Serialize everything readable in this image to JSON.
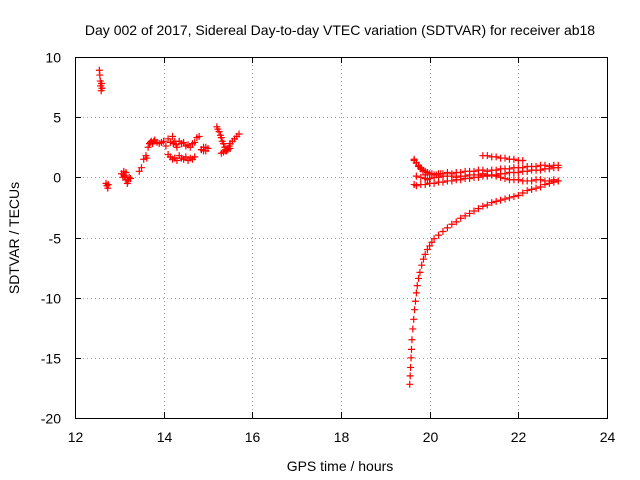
{
  "chart_data": {
    "type": "scatter",
    "title": "Day 002 of 2017, Sidereal Day-to-day VTEC variation (SDTVAR) for receiver ab18",
    "xlabel": "GPS time / hours",
    "ylabel": "SDTVAR / TECUs",
    "xlim": [
      12,
      24
    ],
    "ylim": [
      -20,
      10
    ],
    "xticks": [
      12,
      14,
      16,
      18,
      20,
      22,
      24
    ],
    "xtick_labels": [
      "12",
      "14",
      "16",
      "18",
      "20",
      "22",
      "24"
    ],
    "yticks": [
      10,
      5,
      0,
      -5,
      -10,
      -15,
      -20
    ],
    "ytick_labels": [
      "10",
      "5",
      "0",
      "-5",
      "-10",
      "-15",
      "-20"
    ],
    "grid": true,
    "marker": "plus",
    "color": "#ff0000",
    "series": [
      {
        "name": "SDTVAR",
        "x": [
          12.55,
          12.56,
          12.57,
          12.58,
          12.59,
          12.6,
          12.61,
          12.7,
          12.72,
          12.74,
          12.75,
          13.05,
          13.08,
          13.1,
          13.12,
          13.15,
          13.18,
          13.2,
          13.22,
          13.25,
          13.15,
          13.1,
          13.45,
          13.5,
          13.55,
          13.6,
          13.62,
          13.65,
          13.68,
          13.7,
          13.72,
          13.75,
          13.78,
          13.8,
          13.85,
          13.9,
          13.95,
          14.0,
          14.05,
          14.1,
          14.15,
          14.2,
          14.22,
          14.25,
          14.28,
          14.3,
          14.35,
          14.4,
          14.45,
          14.5,
          14.55,
          14.6,
          14.65,
          14.7,
          14.75,
          14.8,
          14.85,
          14.9,
          14.95,
          15.0,
          14.1,
          14.15,
          14.2,
          14.25,
          14.3,
          14.35,
          14.4,
          14.45,
          14.5,
          14.55,
          14.6,
          14.65,
          14.7,
          14.85,
          14.9,
          14.95,
          15.2,
          15.22,
          15.25,
          15.28,
          15.3,
          15.32,
          15.35,
          15.38,
          15.4,
          15.42,
          15.45,
          15.48,
          15.5,
          15.55,
          15.6,
          15.65,
          15.7,
          15.3,
          15.35,
          15.4,
          15.45,
          15.5,
          19.55,
          19.56,
          19.57,
          19.58,
          19.59,
          19.6,
          19.62,
          19.64,
          19.66,
          19.68,
          19.7,
          19.72,
          19.75,
          19.78,
          19.82,
          19.86,
          19.9,
          19.95,
          20.0,
          20.05,
          20.1,
          20.2,
          20.3,
          20.4,
          20.5,
          20.6,
          20.7,
          20.8,
          20.9,
          21.0,
          21.1,
          21.2,
          21.3,
          21.4,
          21.5,
          21.6,
          21.7,
          21.8,
          21.9,
          22.0,
          22.1,
          22.2,
          22.3,
          22.4,
          22.5,
          22.6,
          22.7,
          22.8,
          22.9,
          19.65,
          19.7,
          19.75,
          19.8,
          19.85,
          19.9,
          19.95,
          20.0,
          20.05,
          20.1,
          20.15,
          20.2,
          20.25,
          20.3,
          20.4,
          20.5,
          20.6,
          20.7,
          20.8,
          20.9,
          21.0,
          21.1,
          21.2,
          21.3,
          21.4,
          21.5,
          21.6,
          21.7,
          21.8,
          21.9,
          22.0,
          22.1,
          22.2,
          22.3,
          22.4,
          22.5,
          22.6,
          22.7,
          22.8,
          22.9,
          19.7,
          19.8,
          19.9,
          20.0,
          20.1,
          20.2,
          20.3,
          20.4,
          20.5,
          20.6,
          20.7,
          20.8,
          20.9,
          21.0,
          21.1,
          21.2,
          21.3,
          21.4,
          21.5,
          21.6,
          21.7,
          21.8,
          21.9,
          22.0,
          22.1,
          22.2,
          22.3,
          22.4,
          22.5,
          22.6,
          22.7,
          22.8,
          22.9,
          19.65,
          19.7,
          19.8,
          19.9,
          20.0,
          20.1,
          20.2,
          20.3,
          20.4,
          20.5,
          20.6,
          20.7,
          20.8,
          20.9,
          21.0,
          21.1,
          21.2,
          21.3,
          21.4,
          21.5,
          21.6,
          21.7,
          21.8,
          21.9,
          22.0,
          22.1,
          22.2,
          22.3,
          22.4,
          22.5,
          22.6,
          22.7,
          22.8,
          22.9,
          19.65,
          19.7,
          19.75,
          19.8,
          19.85,
          19.9,
          19.95,
          20.0,
          21.2,
          21.3,
          21.4,
          21.5,
          21.6,
          21.7,
          21.8,
          21.9,
          22.0,
          22.1
        ],
        "y": [
          8.9,
          8.5,
          8.0,
          7.6,
          7.2,
          7.8,
          7.4,
          -0.5,
          -0.7,
          -0.9,
          -0.6,
          0.3,
          0.0,
          0.5,
          0.1,
          -0.2,
          -0.5,
          -0.3,
          0.0,
          -0.1,
          0.4,
          0.2,
          0.5,
          0.8,
          1.5,
          1.8,
          1.6,
          2.5,
          2.8,
          2.9,
          3.0,
          2.8,
          3.0,
          3.1,
          2.9,
          2.8,
          2.9,
          3.0,
          2.6,
          3.2,
          2.9,
          3.4,
          2.8,
          3.0,
          2.7,
          2.5,
          3.0,
          2.8,
          2.9,
          2.6,
          2.7,
          2.5,
          2.8,
          2.9,
          3.3,
          3.4,
          2.3,
          2.2,
          2.5,
          2.4,
          1.9,
          1.7,
          1.5,
          1.6,
          1.4,
          1.8,
          1.6,
          1.5,
          1.7,
          1.4,
          1.6,
          1.5,
          1.7,
          2.3,
          2.5,
          2.2,
          4.2,
          4.0,
          3.8,
          3.5,
          3.3,
          3.0,
          2.8,
          2.5,
          2.3,
          2.2,
          2.4,
          2.6,
          2.8,
          3.0,
          3.2,
          3.4,
          3.6,
          2.0,
          2.1,
          2.2,
          2.3,
          2.4,
          -17.2,
          -16.5,
          -15.8,
          -15.0,
          -14.3,
          -13.5,
          -12.6,
          -11.8,
          -11.0,
          -10.3,
          -9.6,
          -9.0,
          -8.4,
          -7.9,
          -7.3,
          -6.8,
          -6.4,
          -6.0,
          -5.7,
          -5.4,
          -5.1,
          -4.8,
          -4.5,
          -4.2,
          -3.9,
          -3.7,
          -3.4,
          -3.2,
          -3.0,
          -2.8,
          -2.6,
          -2.4,
          -2.3,
          -2.1,
          -2.0,
          -1.9,
          -1.8,
          -1.7,
          -1.6,
          -1.5,
          -1.3,
          -1.1,
          -1.0,
          -0.9,
          -0.8,
          -0.6,
          -0.5,
          -0.4,
          -0.3,
          1.4,
          1.2,
          0.9,
          0.7,
          0.6,
          0.5,
          0.4,
          0.3,
          0.3,
          0.2,
          0.2,
          0.3,
          0.3,
          0.3,
          0.4,
          0.3,
          0.4,
          0.4,
          0.5,
          0.5,
          0.5,
          0.6,
          0.6,
          0.5,
          0.6,
          0.6,
          0.7,
          0.7,
          0.7,
          0.8,
          0.8,
          0.8,
          0.9,
          0.9,
          0.9,
          1.0,
          1.0,
          0.9,
          1.0,
          1.0,
          0.1,
          0.0,
          -0.1,
          -0.1,
          0.0,
          0.0,
          0.1,
          0.1,
          0.1,
          0.0,
          0.1,
          0.1,
          0.2,
          0.2,
          0.2,
          0.3,
          0.2,
          0.2,
          0.1,
          0.0,
          -0.1,
          -0.2,
          -0.2,
          -0.2,
          -0.3,
          -0.3,
          -0.3,
          -0.2,
          -0.2,
          -0.3,
          -0.3,
          -0.2,
          -0.3,
          -0.6,
          -0.7,
          -0.6,
          -0.6,
          -0.5,
          -0.5,
          -0.4,
          -0.4,
          -0.3,
          -0.3,
          -0.2,
          -0.2,
          -0.1,
          -0.1,
          0.0,
          0.0,
          0.1,
          0.1,
          0.2,
          0.2,
          0.3,
          0.3,
          0.4,
          0.4,
          0.4,
          0.5,
          0.5,
          0.6,
          0.6,
          0.6,
          0.7,
          0.7,
          0.8,
          0.8,
          1.5,
          1.2,
          1.0,
          0.8,
          0.5,
          0.2,
          -0.2,
          -0.5,
          1.8,
          1.8,
          1.7,
          1.7,
          1.6,
          1.6,
          1.5,
          1.5,
          1.4,
          1.4
        ]
      }
    ]
  }
}
